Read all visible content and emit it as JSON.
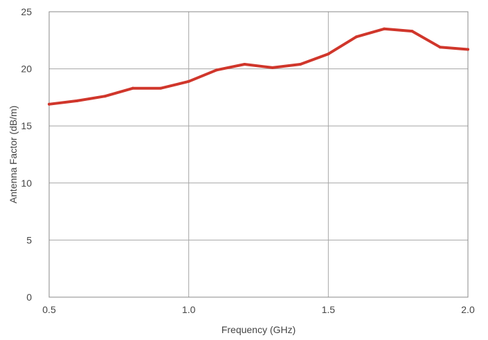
{
  "chart_data": {
    "type": "line",
    "title": "",
    "xlabel": "Frequency (GHz)",
    "ylabel": "Antenna Factor (dB/m)",
    "xlim": [
      0.5,
      2.0
    ],
    "ylim": [
      0,
      25
    ],
    "xticks": [
      0.5,
      1.0,
      1.5,
      2.0
    ],
    "xtick_labels": [
      "0.5",
      "1.0",
      "1.5",
      "2.0"
    ],
    "yticks": [
      0,
      5,
      10,
      15,
      20,
      25
    ],
    "ytick_labels": [
      "0",
      "5",
      "10",
      "15",
      "20",
      "25"
    ],
    "grid": true,
    "legend": "none",
    "series": [
      {
        "color": "#d0362b",
        "x": [
          0.5,
          0.6,
          0.7,
          0.8,
          0.9,
          1.0,
          1.1,
          1.2,
          1.3,
          1.4,
          1.5,
          1.6,
          1.7,
          1.8,
          1.9,
          2.0
        ],
        "y": [
          16.9,
          17.2,
          17.6,
          18.3,
          18.3,
          18.9,
          19.9,
          20.4,
          20.1,
          20.4,
          21.3,
          22.8,
          23.5,
          23.3,
          21.9,
          21.7
        ]
      }
    ]
  }
}
